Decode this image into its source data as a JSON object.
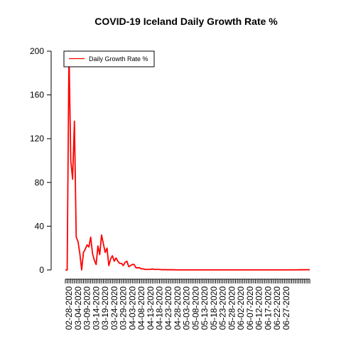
{
  "chart_data": {
    "type": "line",
    "title": "COVID-19 Iceland Daily Growth Rate %",
    "xlabel": "",
    "ylabel": "",
    "ylim": [
      0,
      200
    ],
    "yticks": [
      0,
      40,
      80,
      120,
      160,
      200
    ],
    "x_start": "02-26-2020",
    "xtick_labels": [
      "02-28-2020",
      "03-04-2020",
      "03-09-2020",
      "03-14-2020",
      "03-19-2020",
      "03-24-2020",
      "03-29-2020",
      "04-03-2020",
      "04-08-2020",
      "04-13-2020",
      "04-18-2020",
      "04-23-2020",
      "04-28-2020",
      "05-03-2020",
      "05-08-2020",
      "05-13-2020",
      "05-18-2020",
      "05-23-2020",
      "05-28-2020",
      "06-02-2020",
      "06-07-2020",
      "06-12-2020",
      "06-17-2020",
      "06-22-2020",
      "06-27-2020"
    ],
    "legend": {
      "position": "top-left",
      "entries": [
        "Daily Growth Rate %"
      ]
    },
    "grid": false,
    "series": [
      {
        "name": "Daily Growth Rate %",
        "color": "#ff0000",
        "values": [
          0,
          0,
          200,
          100,
          83,
          136,
          30,
          26,
          15,
          0,
          16,
          19,
          23,
          21,
          30,
          15,
          9,
          5,
          22,
          14,
          32,
          24,
          16,
          20,
          4,
          10,
          13,
          8,
          11,
          8,
          6,
          6,
          4,
          7,
          8,
          3,
          4,
          5,
          5,
          2,
          2,
          2,
          1,
          1,
          0.5,
          0.5,
          0.5,
          0.5,
          1,
          0.5,
          0.5,
          0.5,
          0.5,
          0.3,
          0.3,
          0.3,
          0.2,
          0.2,
          0.2,
          0.2,
          0.2,
          0.1,
          0.1,
          0.1,
          0.1,
          0.1,
          0.1,
          0.1,
          0.1,
          0.1,
          0.1,
          0.1,
          0.1,
          0.1,
          0.1,
          0.1,
          0.1,
          0.1,
          0.1,
          0.1,
          0.1,
          0.1,
          0.1,
          0.1,
          0.1,
          0.1,
          0.1,
          0.1,
          0.1,
          0.1,
          0.1,
          0.1,
          0.1,
          0.1,
          0.1,
          0.1,
          0.1,
          0.1,
          0.1,
          0.1,
          0.1,
          0.1,
          0.1,
          0.1,
          0.1,
          0.1,
          0.1,
          0.1,
          0.1,
          0.1,
          0.1,
          0.1,
          0.1,
          0.1,
          0.1,
          0.1,
          0.1,
          0.1,
          0.1,
          0.1,
          0.1,
          0.1,
          0.1,
          0.1,
          0.1,
          0.1,
          0.1,
          0.1,
          0.1,
          0.2,
          0.2,
          0.2,
          0.2,
          0.2,
          0.2,
          0.2
        ]
      }
    ]
  }
}
